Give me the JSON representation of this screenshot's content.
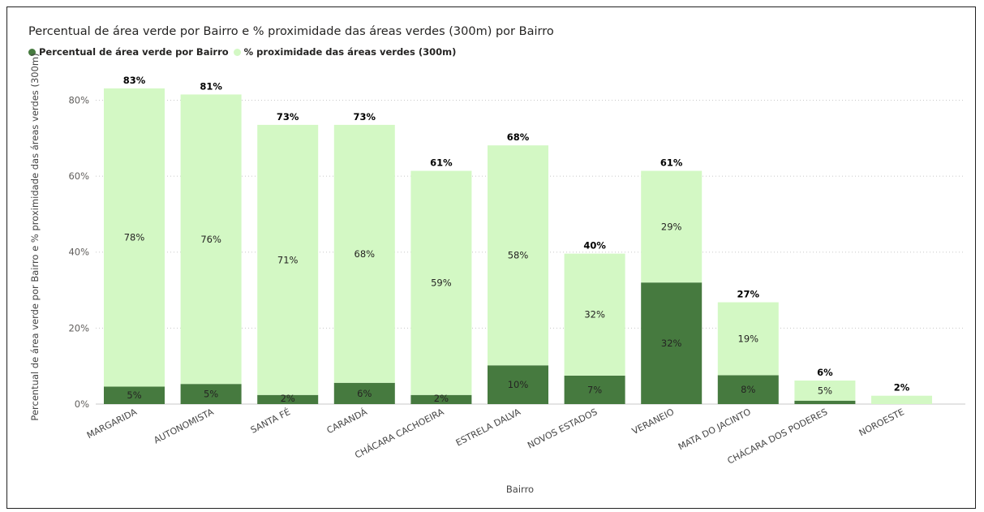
{
  "colors": {
    "series_dark": "#467a3f",
    "series_light": "#d3f8c4",
    "gridline": "#c8c8c8"
  },
  "chart_data": {
    "type": "bar",
    "stacked": true,
    "title": "Percentual de área verde por Bairro e % proximidade das áreas verdes (300m) por Bairro",
    "xlabel": "Bairro",
    "ylabel": "Percentual de área verde por Bairro e % proximidade das áreas verdes (300m)",
    "ylim": [
      0,
      88
    ],
    "yticks": [
      0,
      20,
      40,
      60,
      80
    ],
    "ytick_labels": [
      "0%",
      "20%",
      "40%",
      "60%",
      "80%"
    ],
    "grid": true,
    "legend_position": "top-left",
    "categories": [
      "MARGARIDA",
      "AUTONOMISTA",
      "SANTA FÉ",
      "CARANDÁ",
      "CHÁCARA CACHOEIRA",
      "ESTRELA DALVA",
      "NOVOS ESTADOS",
      "VERANEIO",
      "MATA DO JACINTO",
      "CHÁCARA DOS PODERES",
      "NOROESTE"
    ],
    "series": [
      {
        "name": "Percentual de área verde por Bairro",
        "values": [
          4.6,
          5.3,
          2.4,
          5.6,
          2.4,
          10.2,
          7.5,
          32.0,
          7.6,
          0.9,
          0
        ],
        "labels": [
          "5%",
          "5%",
          "2%",
          "6%",
          "2%",
          "10%",
          "7%",
          "32%",
          "8%",
          "",
          ""
        ]
      },
      {
        "name": "% proximidade das áreas verdes (300m)",
        "values": [
          78.5,
          76.2,
          71.1,
          67.9,
          59.0,
          57.9,
          32.1,
          29.4,
          19.2,
          5.3,
          2.2
        ],
        "labels": [
          "78%",
          "76%",
          "71%",
          "68%",
          "59%",
          "58%",
          "32%",
          "29%",
          "19%",
          "5%",
          ""
        ]
      }
    ],
    "totals": [
      "83%",
      "81%",
      "73%",
      "73%",
      "61%",
      "68%",
      "40%",
      "61%",
      "27%",
      "6%",
      "2%"
    ]
  }
}
